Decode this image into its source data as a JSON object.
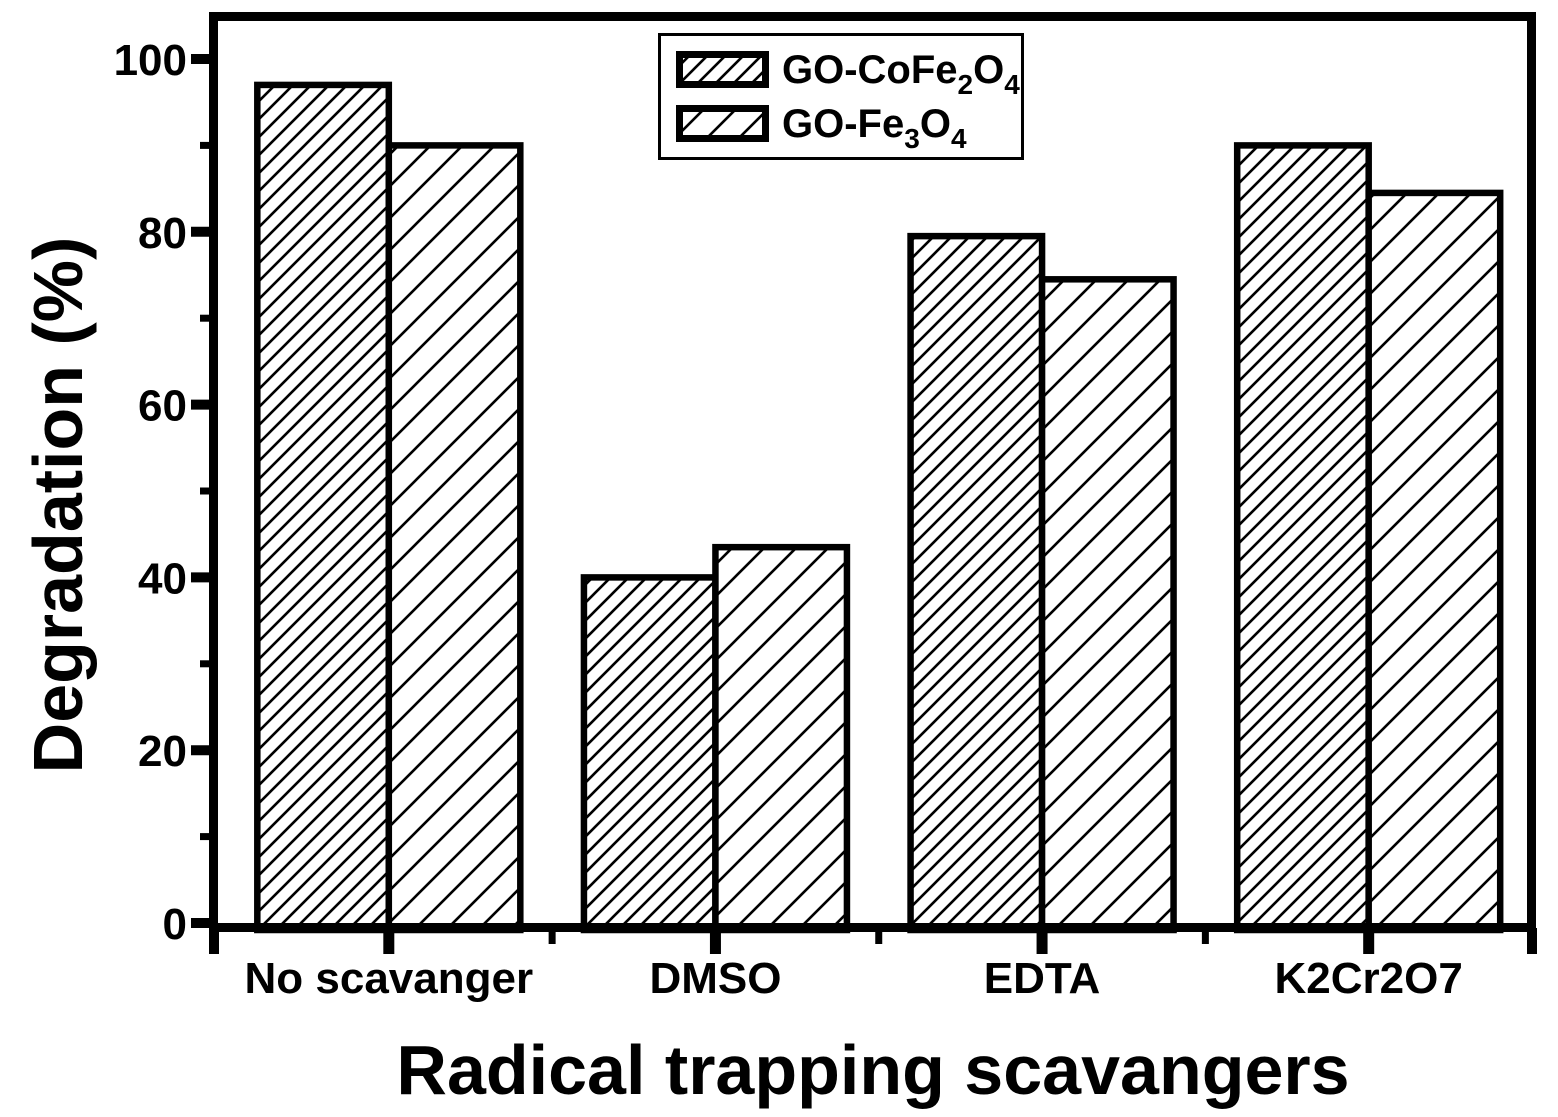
{
  "chart_data": {
    "type": "bar",
    "title": "",
    "categories": [
      "No scavanger",
      "DMSO",
      "EDTA",
      "K2Cr2O7"
    ],
    "series": [
      {
        "name": "GO-CoFe2O4",
        "hatch": "dense-diagonal",
        "values": [
          97,
          40,
          79.5,
          90
        ]
      },
      {
        "name": "GO-Fe3O4",
        "hatch": "sparse-diagonal",
        "values": [
          90,
          43.5,
          74.5,
          84.5
        ]
      }
    ],
    "xlabel": "Radical trapping scavangers",
    "ylabel": "Degradation (%)",
    "ylim": [
      0,
      100
    ],
    "y_major_tick_step": 20,
    "y_minor_tick_step": 10,
    "y_tick_labels": [
      "0",
      "20",
      "40",
      "60",
      "80",
      "100"
    ],
    "grid": false,
    "legend_position": "top-center",
    "bar_fill": "#ffffff",
    "stroke_color": "#000000",
    "background": "#ffffff"
  },
  "legend": {
    "items": [
      {
        "label": "GO-CoFe2O4",
        "prefix": "GO-CoFe",
        "sub1": "2",
        "mid": "O",
        "sub2": "4",
        "swatch": "dense-hatch"
      },
      {
        "label": "GO-Fe3O4",
        "prefix": "GO-Fe",
        "sub1": "3",
        "mid": "O",
        "sub2": "4",
        "swatch": "sparse-hatch"
      }
    ]
  }
}
